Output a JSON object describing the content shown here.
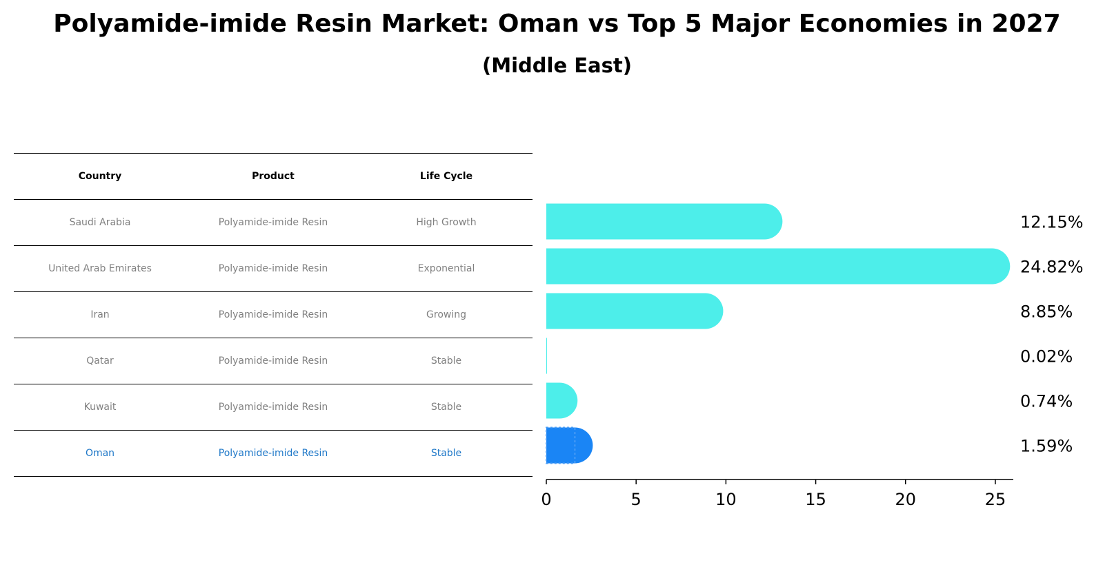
{
  "title": "Polyamide-imide Resin Market: Oman vs Top 5 Major Economies in 2027",
  "subtitle": "(Middle East)",
  "colors": {
    "bar": "#4deeea",
    "highlight_bar": "#1a85f5",
    "highlight_text": "#1f78c8",
    "muted_text": "#808080"
  },
  "table": {
    "headers": [
      "Country",
      "Product",
      "Life Cycle"
    ],
    "rows": [
      [
        "Saudi Arabia",
        "Polyamide-imide Resin",
        "High Growth"
      ],
      [
        "United Arab Emirates",
        "Polyamide-imide Resin",
        "Exponential"
      ],
      [
        "Iran",
        "Polyamide-imide Resin",
        "Growing"
      ],
      [
        "Qatar",
        "Polyamide-imide Resin",
        "Stable"
      ],
      [
        "Kuwait",
        "Polyamide-imide Resin",
        "Stable"
      ],
      [
        "Oman",
        "Polyamide-imide Resin",
        "Stable"
      ]
    ]
  },
  "chart_data": {
    "type": "bar",
    "orientation": "horizontal",
    "categories": [
      "Saudi Arabia",
      "United Arab Emirates",
      "Iran",
      "Qatar",
      "Kuwait",
      "Oman"
    ],
    "values": [
      12.15,
      24.82,
      8.85,
      0.02,
      0.74,
      1.59
    ],
    "value_labels": [
      "12.15%",
      "24.82%",
      "8.85%",
      "0.02%",
      "0.74%",
      "1.59%"
    ],
    "highlight": "Oman",
    "xlim": [
      0,
      26
    ],
    "xticks": [
      0,
      5,
      10,
      15,
      20,
      25
    ],
    "grid": false
  }
}
